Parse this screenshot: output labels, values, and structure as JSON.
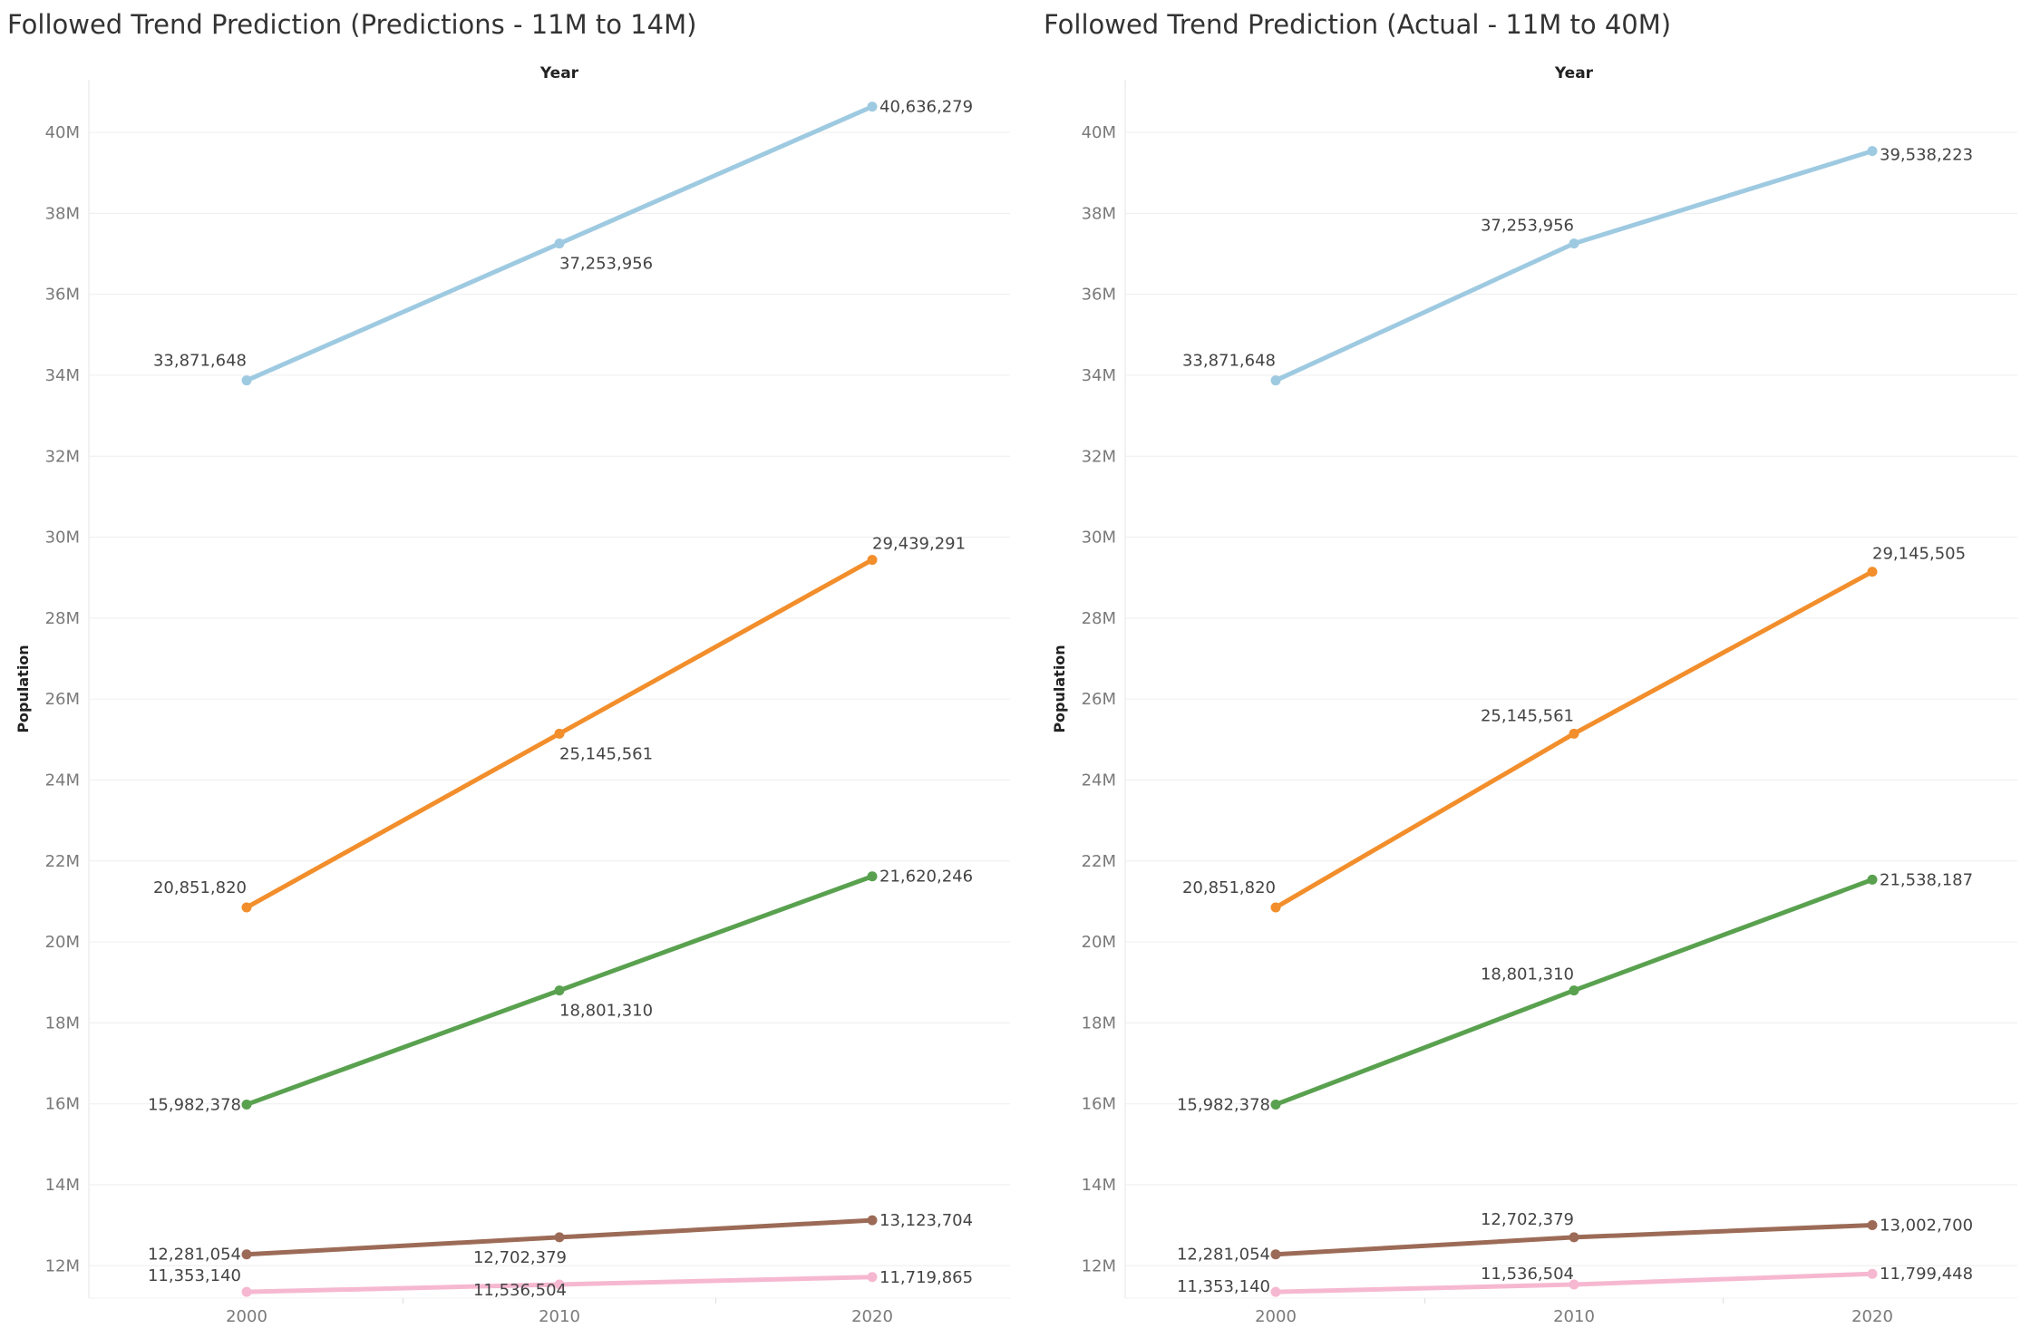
{
  "chart_data": [
    {
      "type": "line",
      "title": "Followed Trend Prediction (Predictions - 11M to 14M)",
      "xlabel": "Year",
      "ylabel": "Population",
      "x": [
        "2000",
        "2010",
        "2020"
      ],
      "ylim": [
        11200000,
        41300000
      ],
      "yticks": [
        12000000,
        14000000,
        16000000,
        18000000,
        20000000,
        22000000,
        24000000,
        26000000,
        28000000,
        30000000,
        32000000,
        34000000,
        36000000,
        38000000,
        40000000
      ],
      "ytick_labels": [
        "12M",
        "14M",
        "16M",
        "18M",
        "20M",
        "22M",
        "24M",
        "26M",
        "28M",
        "30M",
        "32M",
        "34M",
        "36M",
        "38M",
        "40M"
      ],
      "grid": true,
      "series": [
        {
          "values": [
            33871648,
            37253956,
            40636279
          ],
          "labels": [
            "33,871,648",
            "37,253,956",
            "40,636,279"
          ],
          "color": "#9ecae1"
        },
        {
          "values": [
            20851820,
            25145561,
            29439291
          ],
          "labels": [
            "20,851,820",
            "25,145,561",
            "29,439,291"
          ],
          "color": "#f28e2b"
        },
        {
          "values": [
            15982378,
            18801310,
            21620246
          ],
          "labels": [
            "15,982,378",
            "18,801,310",
            "21,620,246"
          ],
          "color": "#59a14f"
        },
        {
          "values": [
            12281054,
            12702379,
            13123704
          ],
          "labels": [
            "12,281,054",
            "12,702,379",
            "13,123,704"
          ],
          "color": "#9c6b57"
        },
        {
          "values": [
            11353140,
            11536504,
            11719865
          ],
          "labels": [
            "11,353,140",
            "11,536,504",
            "11,719,865"
          ],
          "color": "#f6b8d0"
        }
      ]
    },
    {
      "type": "line",
      "title": "Followed Trend Prediction (Actual - 11M to 40M)",
      "xlabel": "Year",
      "ylabel": "Population",
      "x": [
        "2000",
        "2010",
        "2020"
      ],
      "ylim": [
        11200000,
        41300000
      ],
      "yticks": [
        12000000,
        14000000,
        16000000,
        18000000,
        20000000,
        22000000,
        24000000,
        26000000,
        28000000,
        30000000,
        32000000,
        34000000,
        36000000,
        38000000,
        40000000
      ],
      "ytick_labels": [
        "12M",
        "14M",
        "16M",
        "18M",
        "20M",
        "22M",
        "24M",
        "26M",
        "28M",
        "30M",
        "32M",
        "34M",
        "36M",
        "38M",
        "40M"
      ],
      "grid": true,
      "series": [
        {
          "values": [
            33871648,
            37253956,
            39538223
          ],
          "labels": [
            "33,871,648",
            "37,253,956",
            "39,538,223"
          ],
          "color": "#9ecae1"
        },
        {
          "values": [
            20851820,
            25145561,
            29145505
          ],
          "labels": [
            "20,851,820",
            "25,145,561",
            "29,145,505"
          ],
          "color": "#f28e2b"
        },
        {
          "values": [
            15982378,
            18801310,
            21538187
          ],
          "labels": [
            "15,982,378",
            "18,801,310",
            "21,538,187"
          ],
          "color": "#59a14f"
        },
        {
          "values": [
            12281054,
            12702379,
            13002700
          ],
          "labels": [
            "12,281,054",
            "12,702,379",
            "13,002,700"
          ],
          "color": "#9c6b57"
        },
        {
          "values": [
            11353140,
            11536504,
            11799448
          ],
          "labels": [
            "11,353,140",
            "11,536,504",
            "11,799,448"
          ],
          "color": "#f6b8d0"
        }
      ]
    }
  ]
}
